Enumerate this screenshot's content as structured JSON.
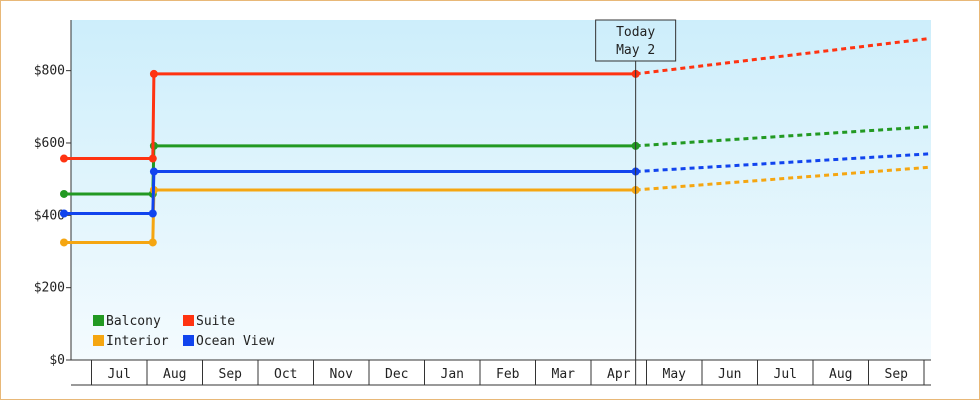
{
  "chart_data": {
    "type": "line",
    "title": "",
    "xlabel": "",
    "ylabel": "",
    "ylim": [
      0,
      940
    ],
    "y_ticks": [
      0,
      200,
      400,
      600,
      800
    ],
    "y_tick_labels": [
      "$0",
      "$200",
      "$400",
      "$600",
      "$800"
    ],
    "x_tick_labels": [
      "Jul",
      "Aug",
      "Sep",
      "Oct",
      "Nov",
      "Dec",
      "Jan",
      "Feb",
      "Mar",
      "Apr",
      "May",
      "Jun",
      "Jul",
      "Aug",
      "Sep"
    ],
    "today_marker": {
      "line1": "Today",
      "line2": "May 2"
    },
    "x_start_month_index": 0,
    "x_end_month_index": 15.6,
    "today_index": 10.3,
    "series": [
      {
        "name": "Balcony",
        "color": "#229922",
        "history": [
          [
            0,
            459
          ],
          [
            1.6,
            459
          ],
          [
            1.62,
            592
          ],
          [
            10.3,
            592
          ]
        ],
        "forecast": [
          [
            10.3,
            592
          ],
          [
            15.6,
            645
          ]
        ]
      },
      {
        "name": "Suite",
        "color": "#ff3311",
        "history": [
          [
            0,
            557
          ],
          [
            1.6,
            557
          ],
          [
            1.62,
            791
          ],
          [
            10.3,
            791
          ]
        ],
        "forecast": [
          [
            10.3,
            791
          ],
          [
            15.6,
            889
          ]
        ]
      },
      {
        "name": "Interior",
        "color": "#f5a611",
        "history": [
          [
            0,
            325
          ],
          [
            1.6,
            325
          ],
          [
            1.62,
            470
          ],
          [
            10.3,
            470
          ]
        ],
        "forecast": [
          [
            10.3,
            470
          ],
          [
            15.6,
            533
          ]
        ]
      },
      {
        "name": "Ocean View",
        "color": "#1144ee",
        "history": [
          [
            0,
            405
          ],
          [
            1.6,
            405
          ],
          [
            1.62,
            521
          ],
          [
            10.3,
            521
          ]
        ],
        "forecast": [
          [
            10.3,
            521
          ],
          [
            15.6,
            570
          ]
        ]
      }
    ],
    "legend": "bottom-left",
    "grid": false
  }
}
